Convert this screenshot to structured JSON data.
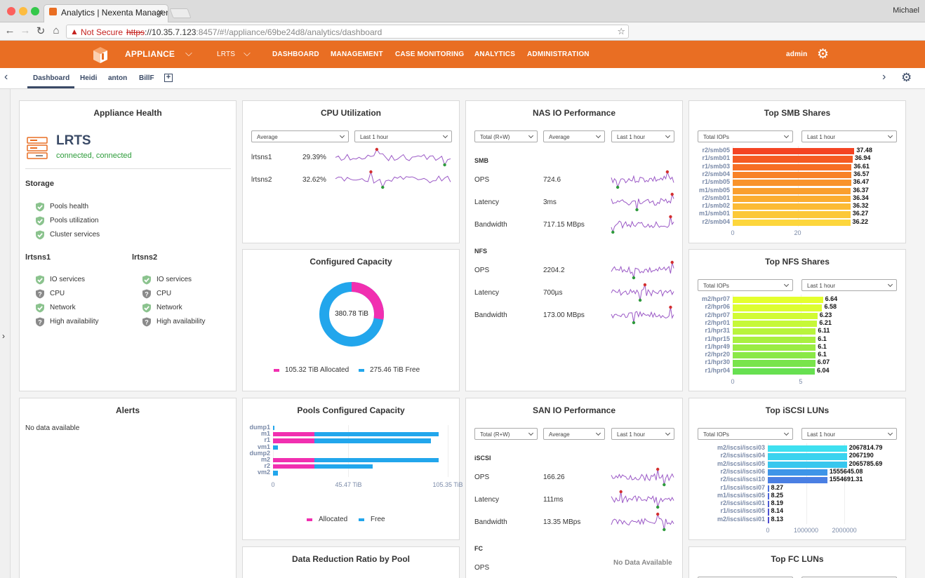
{
  "browser": {
    "tab_title": "Analytics | Nexenta Manageme",
    "user": "Michael",
    "security_label": "Not Secure",
    "url_scheme": "https",
    "url_host": "://10.35.7.123",
    "url_rest": ":8457/#!/appliance/69be24d8/analytics/dashboard"
  },
  "header": {
    "appliance_label": "APPLIANCE",
    "lrts_label": "LRTS",
    "nav": [
      "DASHBOARD",
      "MANAGEMENT",
      "CASE MONITORING",
      "ANALYTICS",
      "ADMINISTRATION"
    ],
    "user": "admin",
    "accent": "#e96e23"
  },
  "tabs": [
    "Dashboard",
    "Heidi",
    "anton",
    "BillF"
  ],
  "health": {
    "title": "Appliance Health",
    "name": "LRTS",
    "status": "connected, connected",
    "storage_title": "Storage",
    "storage_items": [
      "Pools health",
      "Pools utilization",
      "Cluster services"
    ],
    "node1": "lrtsns1",
    "node2": "lrtsns2",
    "node_items": [
      "IO services",
      "CPU",
      "Network",
      "High availability"
    ]
  },
  "cpu": {
    "title": "CPU Utilization",
    "select1": "Average",
    "select2": "Last 1 hour",
    "rows": [
      {
        "name": "lrtsns1",
        "value": "29.39%"
      },
      {
        "name": "lrtsns2",
        "value": "32.62%"
      }
    ]
  },
  "capacity": {
    "title": "Configured Capacity",
    "total": "380.78 TiB",
    "allocated_label": "105.32 TiB Allocated",
    "free_label": "275.46 TiB Free",
    "allocated": 105.32,
    "free": 275.46,
    "color_alloc": "#f12fb0",
    "color_free": "#22a6ec"
  },
  "nas": {
    "title": "NAS IO Performance",
    "select1": "Total (R+W)",
    "select2": "Average",
    "select3": "Last 1 hour",
    "smb_label": "SMB",
    "nfs_label": "NFS",
    "smb": [
      {
        "name": "OPS",
        "value": "724.6"
      },
      {
        "name": "Latency",
        "value": "3ms"
      },
      {
        "name": "Bandwidth",
        "value": "717.15 MBps"
      }
    ],
    "nfs": [
      {
        "name": "OPS",
        "value": "2204.2"
      },
      {
        "name": "Latency",
        "value": "700µs"
      },
      {
        "name": "Bandwidth",
        "value": "173.00 MBps"
      }
    ]
  },
  "smb_shares": {
    "title": "Top SMB Shares",
    "select1": "Total IOPs",
    "select2": "Last 1 hour",
    "axis": [
      "0",
      "20"
    ]
  },
  "nfs_shares": {
    "title": "Top NFS Shares",
    "select1": "Total IOPs",
    "select2": "Last 1 hour",
    "axis": [
      "0",
      "5"
    ]
  },
  "alerts": {
    "title": "Alerts",
    "empty": "No data available"
  },
  "pools": {
    "title": "Pools Configured Capacity",
    "axis": [
      "0",
      "45.47 TiB",
      "105.35 TiB"
    ],
    "legend_alloc": "Allocated",
    "legend_free": "Free"
  },
  "san": {
    "title": "SAN IO Performance",
    "select1": "Total (R+W)",
    "select2": "Average",
    "select3": "Last 1 hour",
    "iscsi_label": "iSCSI",
    "fc_label": "FC",
    "iscsi": [
      {
        "name": "OPS",
        "value": "166.26"
      },
      {
        "name": "Latency",
        "value": "111ms"
      },
      {
        "name": "Bandwidth",
        "value": "13.35 MBps"
      }
    ],
    "fc_ops": "OPS",
    "fc_empty": "No Data Available"
  },
  "iscsi_luns": {
    "title": "Top iSCSI LUNs",
    "select1": "Total IOPs",
    "select2": "Last 1 hour",
    "axis": [
      "0",
      "1000000",
      "2000000"
    ]
  },
  "data_reduction": {
    "title": "Data Reduction Ratio by Pool"
  },
  "fc_luns": {
    "title": "Top FC LUNs"
  },
  "chart_data": [
    {
      "type": "bar",
      "title": "Top SMB Shares",
      "orientation": "horizontal",
      "categories": [
        "r2/smb05",
        "r1/smb01",
        "r1/smb03",
        "r2/smb04",
        "r1/smb05",
        "m1/smb05",
        "r2/smb01",
        "r1/smb02",
        "m1/smb01",
        "r2/smb04"
      ],
      "values": [
        37.48,
        36.94,
        36.61,
        36.57,
        36.47,
        36.37,
        36.34,
        36.32,
        36.27,
        36.22
      ],
      "colors": [
        "#f44323",
        "#f55a23",
        "#f76e25",
        "#f88227",
        "#f9932b",
        "#fa9f2e",
        "#fbad31",
        "#fcbb35",
        "#fcc838",
        "#fdd63c"
      ],
      "xlim": [
        0,
        40
      ]
    },
    {
      "type": "bar",
      "title": "Top NFS Shares",
      "orientation": "horizontal",
      "categories": [
        "m2/hpr07",
        "r2/hpr06",
        "r2/hpr07",
        "r2/hpr01",
        "r1/hpr31",
        "r1/hpr15",
        "r1/hpr49",
        "r2/hpr20",
        "r1/hpr30",
        "r1/hpr04"
      ],
      "values": [
        6.64,
        6.58,
        6.23,
        6.21,
        6.11,
        6.1,
        6.1,
        6.1,
        6.07,
        6.04
      ],
      "colors": [
        "#e4ff2e",
        "#ddfe31",
        "#d2fb34",
        "#c6f838",
        "#b8f43c",
        "#a9f03f",
        "#9aec43",
        "#8ae847",
        "#79e44c",
        "#67e051"
      ],
      "xlim": [
        0,
        8
      ]
    },
    {
      "type": "bar",
      "title": "Pools Configured Capacity",
      "orientation": "horizontal",
      "categories": [
        "dump1",
        "m1",
        "r1",
        "vm1",
        "dump2",
        "m2",
        "r2",
        "vm2"
      ],
      "series": [
        {
          "name": "Allocated",
          "values": [
            0,
            25,
            25,
            0,
            0,
            25,
            25,
            0
          ]
        },
        {
          "name": "Free",
          "values": [
            1,
            75,
            70,
            3,
            0,
            75,
            35,
            3
          ]
        }
      ],
      "xlim": [
        0,
        110
      ]
    },
    {
      "type": "bar",
      "title": "Top iSCSI LUNs",
      "orientation": "horizontal",
      "categories": [
        "m2/iscsi/iscsi03",
        "r2/iscsi/iscsi04",
        "m2/iscsi/iscsi05",
        "r2/iscsi/iscsi06",
        "r2/iscsi/iscsi10",
        "r1/iscsi/iscsi07",
        "m1/iscsi/iscsi05",
        "r2/iscsi/iscsi01",
        "r1/iscsi/iscsi05",
        "m2/iscsi/iscsi01"
      ],
      "values": [
        2067814.79,
        2067190,
        2065785.69,
        1555645.08,
        1554691.31,
        8.27,
        8.25,
        8.19,
        8.14,
        8.13
      ],
      "labels": [
        "2067814.79",
        "2067190",
        "2065785.69",
        "1555645.08",
        "1554691.31",
        "8.27",
        "8.25",
        "8.19",
        "8.14",
        "8.13"
      ],
      "colors": [
        "#3ee0f0",
        "#3bd3ef",
        "#38c7ee",
        "#3e95e8",
        "#4a7fe3",
        "#4b70de",
        "#4c64da",
        "#4d5ad6",
        "#4e52d3",
        "#4f4ccf"
      ],
      "xlim": [
        0,
        2200000
      ]
    }
  ]
}
